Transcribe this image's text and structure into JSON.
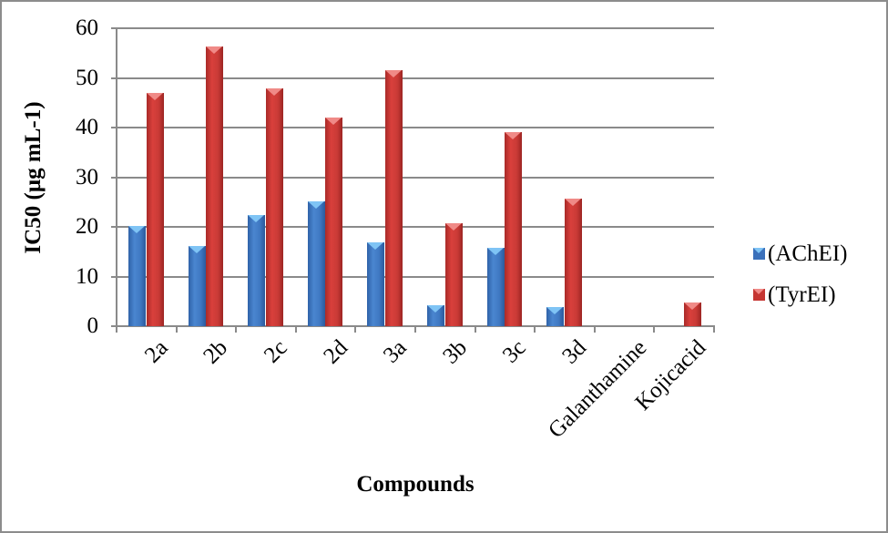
{
  "chart_data": {
    "type": "bar",
    "title": "",
    "xlabel": "Compounds",
    "ylabel": "IC50 (µg mL-1)",
    "ylim": [
      0,
      60
    ],
    "yticks": [
      0,
      10,
      20,
      30,
      40,
      50,
      60
    ],
    "grid": true,
    "legend_position": "right",
    "categories": [
      "2a",
      "2b",
      "2c",
      "2d",
      "3a",
      "3b",
      "3c",
      "3d",
      "Galanthamine",
      "Kojicacid"
    ],
    "series": [
      {
        "name": "(AChEI)",
        "color": "#3a70bb",
        "values": [
          20.1,
          16.2,
          22.3,
          25.1,
          16.9,
          4.3,
          15.7,
          3.8,
          0,
          0
        ]
      },
      {
        "name": "(TyrEI)",
        "color": "#c53632",
        "values": [
          47.0,
          56.3,
          47.9,
          42.1,
          51.6,
          20.7,
          39.1,
          25.7,
          0,
          4.8
        ]
      }
    ]
  },
  "axis": {
    "ytick_labels": [
      "0",
      "10",
      "20",
      "30",
      "40",
      "50",
      "60"
    ],
    "ylabel": "IC50 (µg mL-1)",
    "xlabel": "Compounds"
  },
  "legend": [
    {
      "label": "(AChEI)",
      "color": "#3a70bb"
    },
    {
      "label": "(TyrEI)",
      "color": "#c53632"
    }
  ]
}
